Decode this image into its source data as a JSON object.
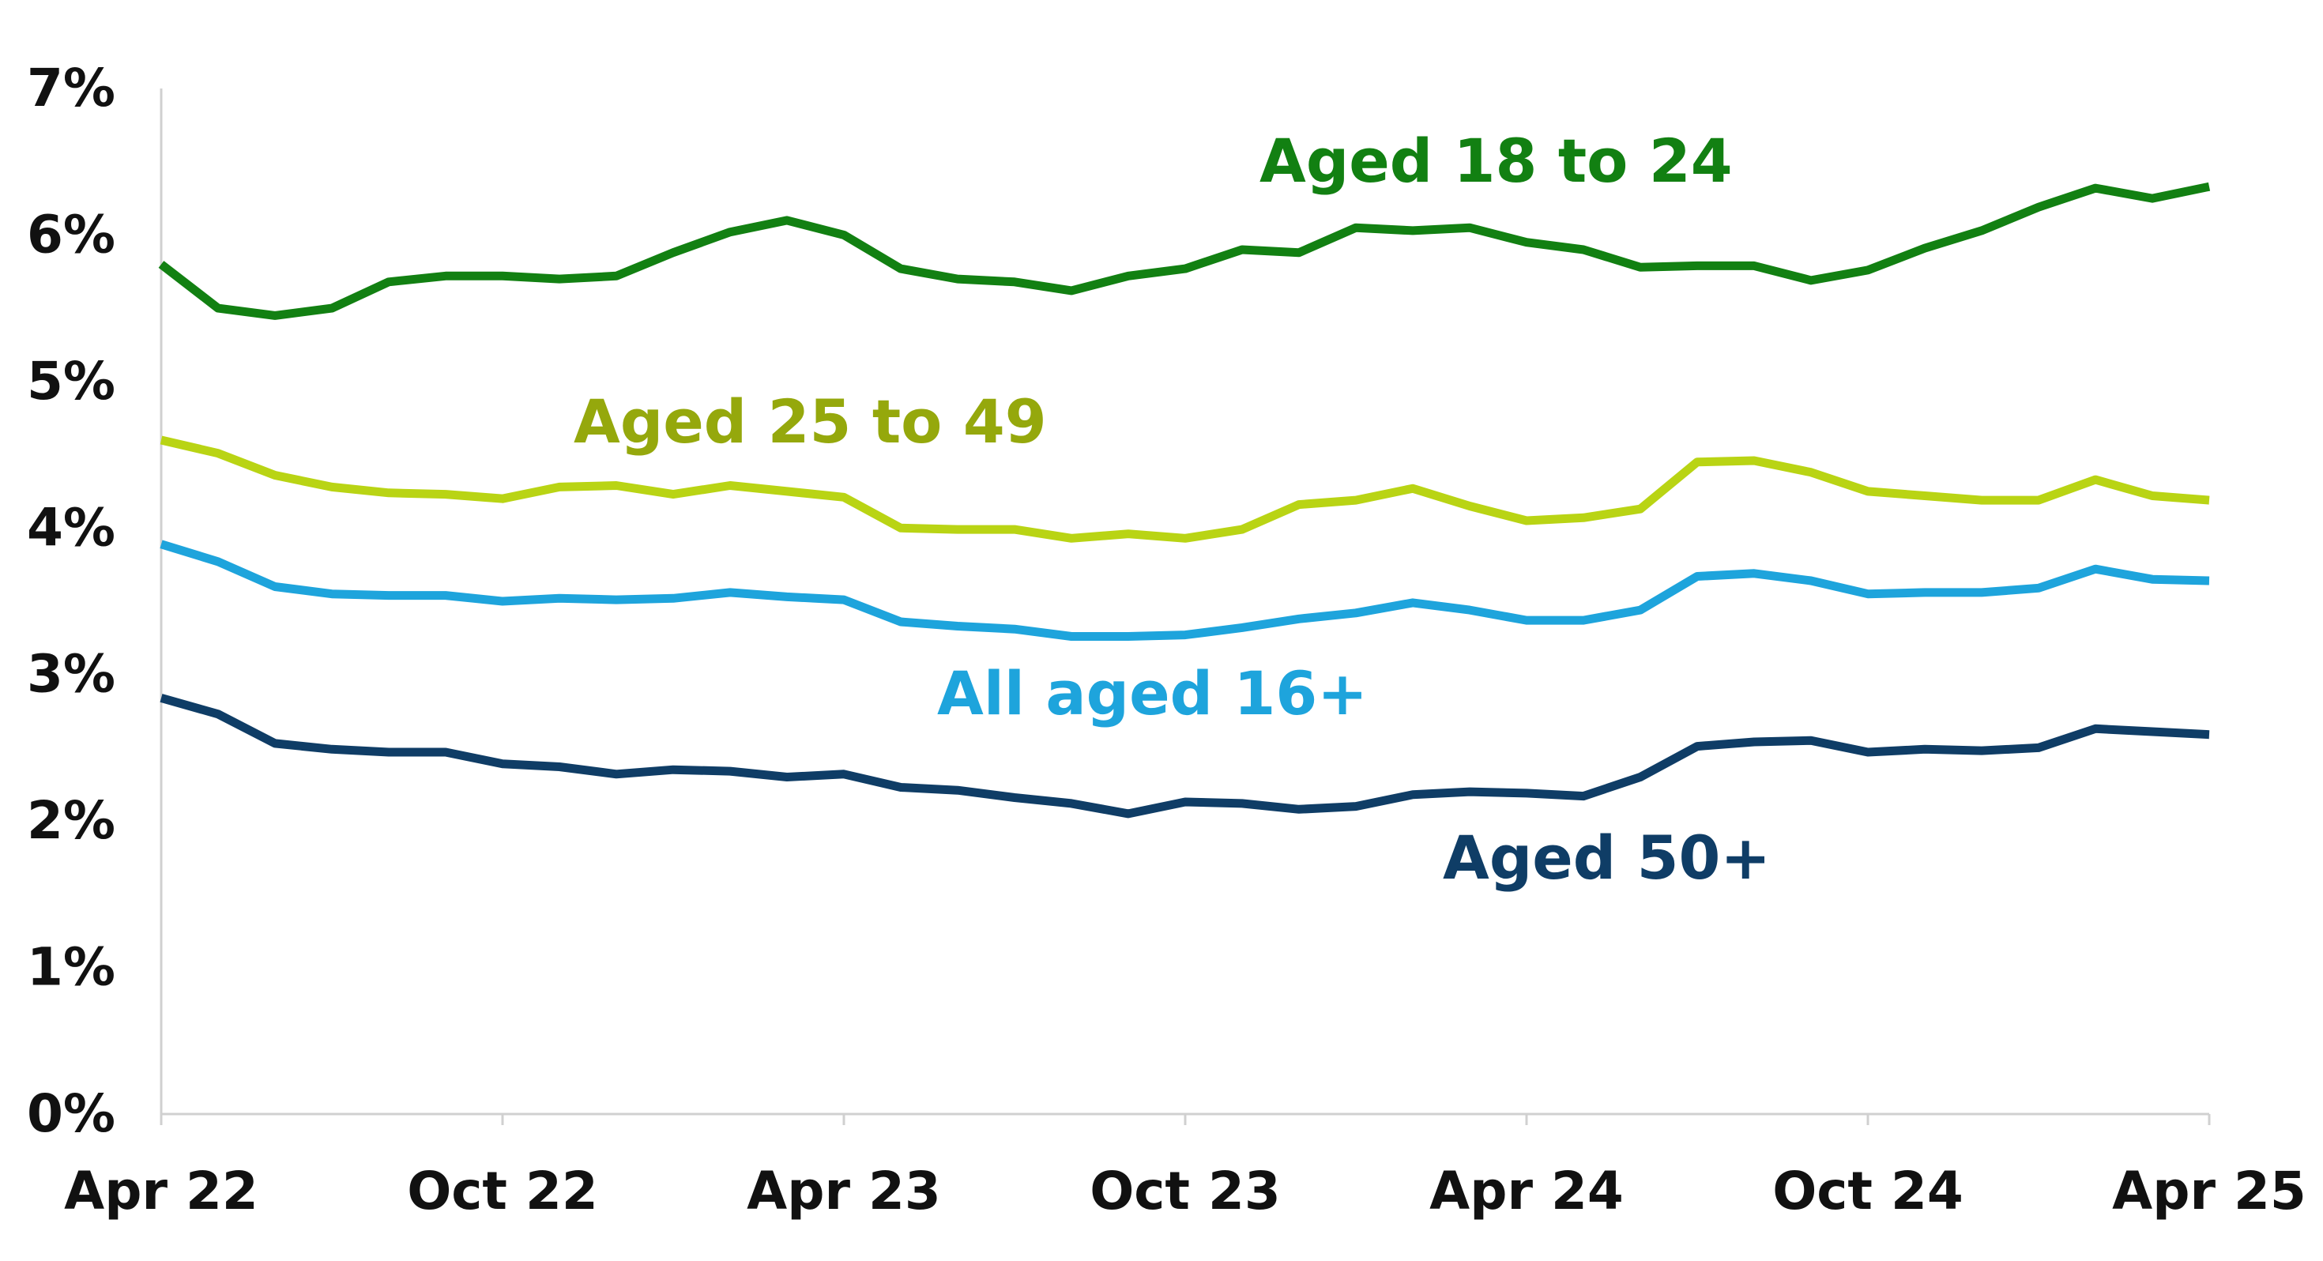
{
  "chart_data": {
    "type": "line",
    "title": "",
    "xlabel": "",
    "ylabel": "",
    "x": [
      "Apr 22",
      "May 22",
      "Jun 22",
      "Jul 22",
      "Aug 22",
      "Sep 22",
      "Oct 22",
      "Nov 22",
      "Dec 22",
      "Jan 23",
      "Feb 23",
      "Mar 23",
      "Apr 23",
      "May 23",
      "Jun 23",
      "Jul 23",
      "Aug 23",
      "Sep 23",
      "Oct 23",
      "Nov 23",
      "Dec 23",
      "Jan 24",
      "Feb 24",
      "Mar 24",
      "Apr 24",
      "May 24",
      "Jun 24",
      "Jul 24",
      "Aug 24",
      "Sep 24",
      "Oct 24",
      "Nov 24",
      "Dec 24",
      "Jan 25",
      "Feb 25",
      "Mar 25",
      "Apr 25"
    ],
    "x_tick_labels": [
      "Apr 22",
      "Oct 22",
      "Apr 23",
      "Oct 23",
      "Apr 24",
      "Oct 24",
      "Apr 25"
    ],
    "y_tick_labels": [
      "0%",
      "1%",
      "2%",
      "3%",
      "4%",
      "5%",
      "6%",
      "7%"
    ],
    "ylim": [
      0,
      7
    ],
    "grid": false,
    "series": [
      {
        "name": "Aged 18 to 24",
        "color": "#128012",
        "values": [
          5.8,
          5.5,
          5.45,
          5.5,
          5.68,
          5.72,
          5.72,
          5.7,
          5.72,
          5.88,
          6.02,
          6.1,
          6.0,
          5.77,
          5.7,
          5.68,
          5.62,
          5.72,
          5.77,
          5.9,
          5.88,
          6.05,
          6.03,
          6.05,
          5.95,
          5.9,
          5.78,
          5.79,
          5.79,
          5.69,
          5.76,
          5.91,
          6.03,
          6.19,
          6.32,
          6.25,
          6.33
        ]
      },
      {
        "name": "Aged 25 to 49",
        "color": "#b9d414",
        "values": [
          4.6,
          4.51,
          4.36,
          4.28,
          4.24,
          4.23,
          4.2,
          4.28,
          4.29,
          4.23,
          4.29,
          4.25,
          4.21,
          4.0,
          3.99,
          3.99,
          3.93,
          3.96,
          3.93,
          3.99,
          4.16,
          4.19,
          4.27,
          4.15,
          4.05,
          4.07,
          4.13,
          4.45,
          4.46,
          4.38,
          4.25,
          4.22,
          4.19,
          4.19,
          4.33,
          4.22,
          4.19
        ]
      },
      {
        "name": "All aged 16+",
        "color": "#1ea4dc",
        "values": [
          3.89,
          3.77,
          3.6,
          3.55,
          3.54,
          3.54,
          3.5,
          3.52,
          3.51,
          3.52,
          3.56,
          3.53,
          3.51,
          3.36,
          3.33,
          3.31,
          3.26,
          3.26,
          3.27,
          3.32,
          3.38,
          3.42,
          3.49,
          3.44,
          3.37,
          3.37,
          3.44,
          3.67,
          3.69,
          3.64,
          3.55,
          3.56,
          3.56,
          3.59,
          3.72,
          3.65,
          3.64
        ]
      },
      {
        "name": "Aged 50+",
        "color": "#0f3d66",
        "values": [
          2.84,
          2.73,
          2.53,
          2.49,
          2.47,
          2.47,
          2.39,
          2.37,
          2.32,
          2.35,
          2.34,
          2.3,
          2.32,
          2.23,
          2.21,
          2.16,
          2.12,
          2.05,
          2.13,
          2.12,
          2.08,
          2.1,
          2.18,
          2.2,
          2.19,
          2.17,
          2.3,
          2.51,
          2.54,
          2.55,
          2.47,
          2.49,
          2.48,
          2.5,
          2.63,
          2.61,
          2.59
        ]
      }
    ],
    "annotations": [
      {
        "text": "Aged 18 to 24",
        "series": 0,
        "color": "#128012"
      },
      {
        "text": "Aged 25 to 49",
        "series": 1,
        "color": "#95a80c"
      },
      {
        "text": "All aged 16+",
        "series": 2,
        "color": "#1ea4dc"
      },
      {
        "text": "Aged 50+",
        "series": 3,
        "color": "#0f3d66"
      }
    ]
  }
}
